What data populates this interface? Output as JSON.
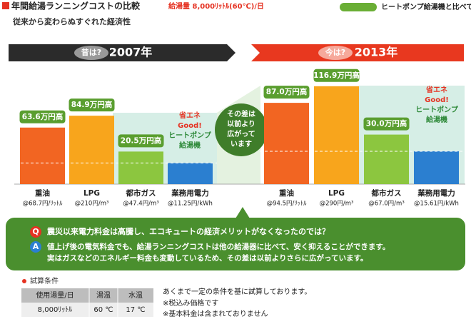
{
  "header": {
    "title": "年間給湯ランニングコストの比較",
    "condition": "給湯量 8,000ﾘｯﾄﾙ(60℃)/日",
    "legend": "ヒートポンプ給湯機と比べて",
    "subtitle": "従来から変わらぬすぐれた経済性"
  },
  "chart_data": [
    {
      "type": "bar",
      "period_label": "昔は?",
      "title": "2007年",
      "categories": [
        "重油",
        "LPG",
        "都市ガス",
        "業務用電力"
      ],
      "unit_prices": [
        "@68.7円/ﾘｯﾄﾙ",
        "@210円/m³",
        "@47.4円/m³",
        "@11.25円/kWh"
      ],
      "baseline": 38,
      "values": [
        63.6,
        84.9,
        20.5,
        0
      ],
      "value_labels": [
        "63.6万円高",
        "84.9万円高",
        "20.5万円高",
        null
      ],
      "colors": [
        "#f26522",
        "#f8a51c",
        "#8cc63f",
        "#2b7fd0"
      ],
      "callout": [
        "省エネ",
        "Good!",
        "ヒートポンプ",
        "給湯機"
      ]
    },
    {
      "type": "bar",
      "period_label": "今は?",
      "title": "2013年",
      "categories": [
        "重油",
        "LPG",
        "都市ガス",
        "業務用電力"
      ],
      "unit_prices": [
        "@94.5円/ﾘｯﾄﾙ",
        "@290円/m³",
        "@67.0円/m³",
        "@15.61円/kWh"
      ],
      "baseline": 59,
      "values": [
        87.0,
        116.9,
        30.0,
        0
      ],
      "value_labels": [
        "87.0万円高",
        "116.9万円高",
        "30.0万円高",
        null
      ],
      "colors": [
        "#f26522",
        "#f8a51c",
        "#8cc63f",
        "#2b7fd0"
      ],
      "callout": [
        "省エネ",
        "Good!",
        "ヒートポンプ",
        "給湯機"
      ]
    }
  ],
  "note_bubble": [
    "その差は",
    "以前より",
    "広がって",
    "います"
  ],
  "qa": {
    "q_badge": "Q",
    "question": "震災以来電力料金は高騰し、エコキュートの経済メリットがなくなったのでは？",
    "a_badge": "A",
    "answer": [
      "値上げ後の電気料金でも、給湯ランニングコストは他の給湯器に比べて、安く抑えることができます。",
      "実はガスなどのエネルギー料金も変動しているため、その差は以前よりさらに広がっています。"
    ]
  },
  "conditions": {
    "title": "試算条件",
    "headers": [
      "使用湯量/日",
      "湯温",
      "水温"
    ],
    "row": [
      "8,000ﾘｯﾄﾙ",
      "60 ℃",
      "17 ℃"
    ],
    "notes": [
      "あくまで一定の条件を基に試算しております。",
      "※税込み価格です",
      "※基本料金は含まれておりません"
    ]
  }
}
